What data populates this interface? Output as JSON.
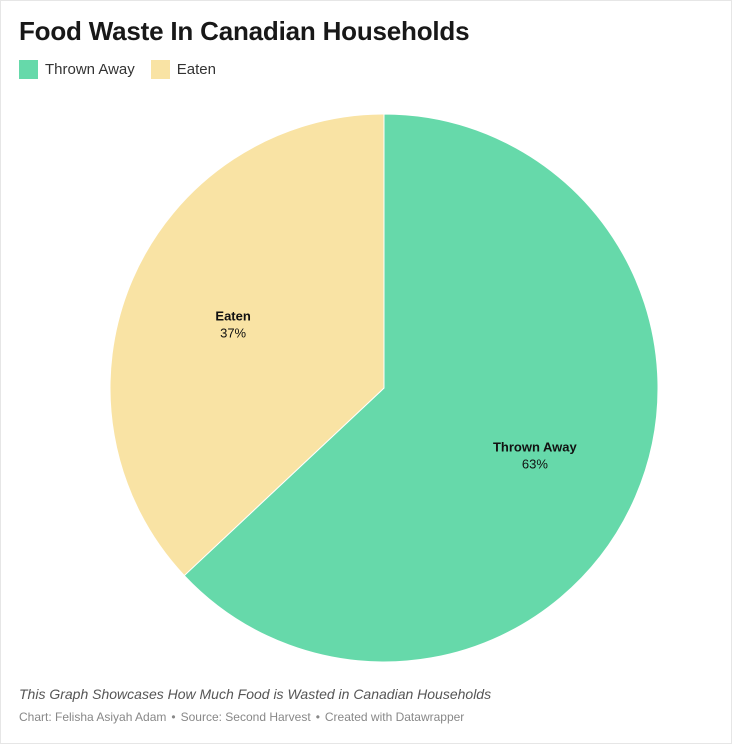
{
  "chart_data": {
    "type": "pie",
    "title": "Food Waste In Canadian Households",
    "description": "This Graph Showcases How Much Food is Wasted in Canadian Households",
    "legend_position": "top-left",
    "slices": [
      {
        "name": "Thrown Away",
        "value": 63,
        "label": "63%",
        "color": "#66d9aa"
      },
      {
        "name": "Eaten",
        "value": 37,
        "label": "37%",
        "color": "#f9e3a4"
      }
    ],
    "legend": [
      {
        "name": "Thrown Away",
        "color": "#66d9aa"
      },
      {
        "name": "Eaten",
        "color": "#f9e3a4"
      }
    ]
  },
  "footer": {
    "chart_credit": "Chart: Felisha Asiyah Adam",
    "source": "Source: Second Harvest",
    "created_with": "Created with Datawrapper",
    "separator": "•"
  }
}
